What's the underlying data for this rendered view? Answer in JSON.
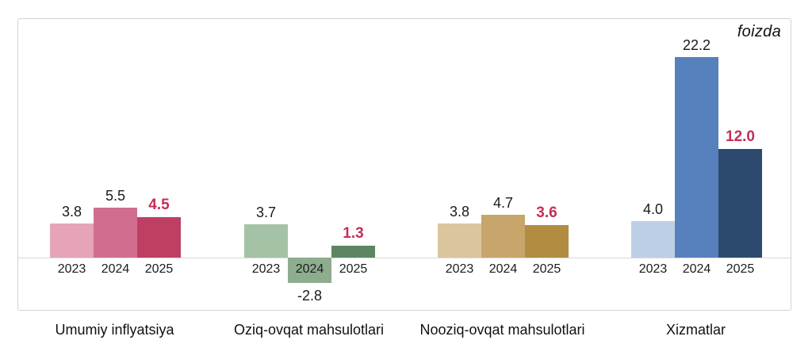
{
  "chart_data": {
    "type": "bar",
    "title": "",
    "unit_label": "foizda",
    "categories": [
      "2023",
      "2024",
      "2025"
    ],
    "ylim": [
      -3.5,
      26.5
    ],
    "grid": false,
    "legend": "none",
    "baseline": 0,
    "highlight_series": "2025",
    "label_color": "#1a1a1a",
    "highlight_label_color": "#c32f55",
    "groups": [
      {
        "label": "Umumiy inflyatsiya",
        "values": [
          3.8,
          5.5,
          4.5
        ],
        "value_labels": [
          "3.8",
          "5.5",
          "4.5"
        ],
        "bar_colors": [
          "#e5a4b8",
          "#d16e90",
          "#bd3f62"
        ]
      },
      {
        "label": "Oziq-ovqat mahsulotlari",
        "values": [
          3.7,
          -2.8,
          1.3
        ],
        "value_labels": [
          "3.7",
          "-2.8",
          "1.3"
        ],
        "bar_colors": [
          "#a4c2a5",
          "#8ead8f",
          "#5d8561"
        ]
      },
      {
        "label": "Nooziq-ovqat mahsulotlari",
        "values": [
          3.8,
          4.7,
          3.6
        ],
        "value_labels": [
          "3.8",
          "4.7",
          "3.6"
        ],
        "bar_colors": [
          "#dbc59e",
          "#c7a56b",
          "#b18c41"
        ]
      },
      {
        "label": "Xizmatlar",
        "values": [
          4.0,
          22.2,
          12.0
        ],
        "value_labels": [
          "4.0",
          "22.2",
          "12.0"
        ],
        "bar_colors": [
          "#bdcfe6",
          "#5681bd",
          "#2c4a6e"
        ]
      }
    ]
  }
}
